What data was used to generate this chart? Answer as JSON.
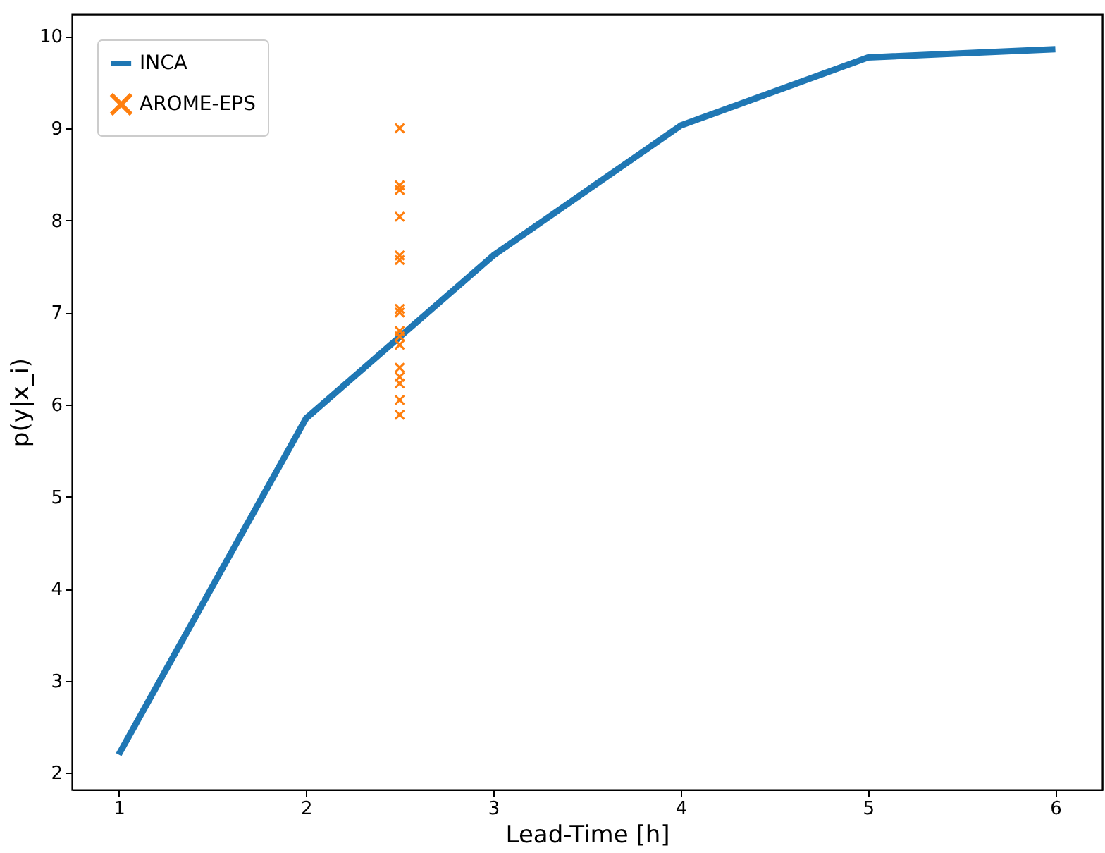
{
  "chart_data": {
    "type": "line",
    "xlabel": "Lead-Time [h]",
    "ylabel": "p(y|x_i)",
    "xlim": [
      0.75,
      6.25
    ],
    "xticks": [
      1,
      2,
      3,
      4,
      5,
      6
    ],
    "ylim": [
      1.82,
      10.24
    ],
    "yticks": [
      2,
      3,
      4,
      5,
      6,
      7,
      8,
      9,
      10
    ],
    "grid": false,
    "legend": "top left",
    "series": [
      {
        "name": "INCA",
        "color": "#1f77b4",
        "marker": "none",
        "line_style": "solid",
        "x": [
          1,
          2,
          3,
          4,
          5,
          6
        ],
        "values": [
          2.2,
          5.85,
          7.62,
          9.03,
          9.77,
          9.86
        ]
      },
      {
        "name": "AROME-EPS",
        "type": "scatter",
        "color": "#ff7f0e",
        "marker": "cross",
        "x": [
          2.5,
          2.5,
          2.5,
          2.5,
          2.5,
          2.5,
          2.5,
          2.5,
          2.5,
          2.5,
          2.5,
          2.5,
          2.5,
          2.5,
          2.5,
          2.5
        ],
        "values": [
          9.0,
          8.38,
          8.33,
          8.04,
          7.62,
          7.57,
          7.04,
          7.0,
          6.8,
          6.74,
          6.65,
          6.4,
          6.3,
          6.23,
          6.05,
          5.89
        ]
      }
    ]
  }
}
